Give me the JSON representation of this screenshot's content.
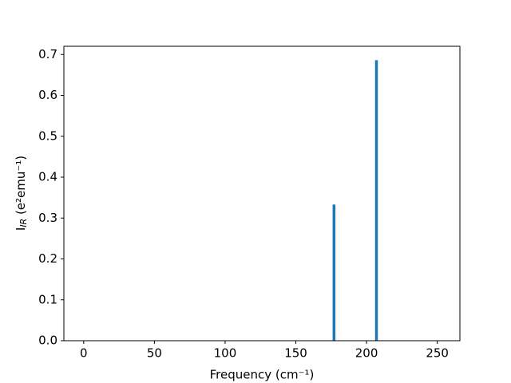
{
  "chart_data": {
    "type": "bar",
    "x": [
      177,
      207
    ],
    "values": [
      0.333,
      0.686
    ],
    "color": "#1f77b4",
    "xlabel": "Frequency (cm⁻¹)",
    "ylabel_parts": [
      "I",
      "IR",
      " (e²emu⁻¹)"
    ],
    "xlim": [
      -14,
      266
    ],
    "xticks": [
      0,
      50,
      100,
      150,
      200,
      250
    ],
    "ylim": [
      0,
      0.72
    ],
    "yticks": [
      {
        "value": 0,
        "label": "0.0"
      },
      0.1,
      0.2,
      0.3,
      0.4,
      0.5,
      0.6,
      0.7
    ],
    "grid": false
  }
}
